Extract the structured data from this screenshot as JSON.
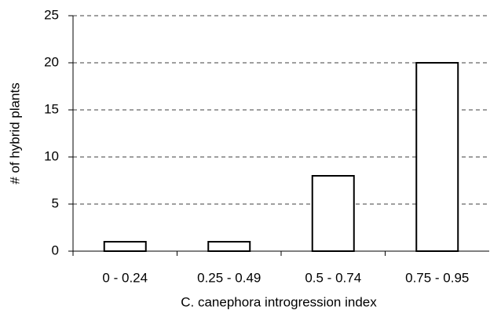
{
  "chart_data": {
    "type": "bar",
    "x_label": "C. canephora introgression index",
    "y_label": "# of hybrid plants",
    "categories": [
      "0 - 0.24",
      "0.25 - 0.49",
      "0.5 - 0.74",
      "0.75 - 0.95"
    ],
    "values": [
      1,
      1,
      8,
      20
    ],
    "color": "#ffffff",
    "ylim": [
      0,
      25
    ],
    "yticks": [
      0,
      5,
      10,
      15,
      20,
      25
    ],
    "grid": true
  }
}
